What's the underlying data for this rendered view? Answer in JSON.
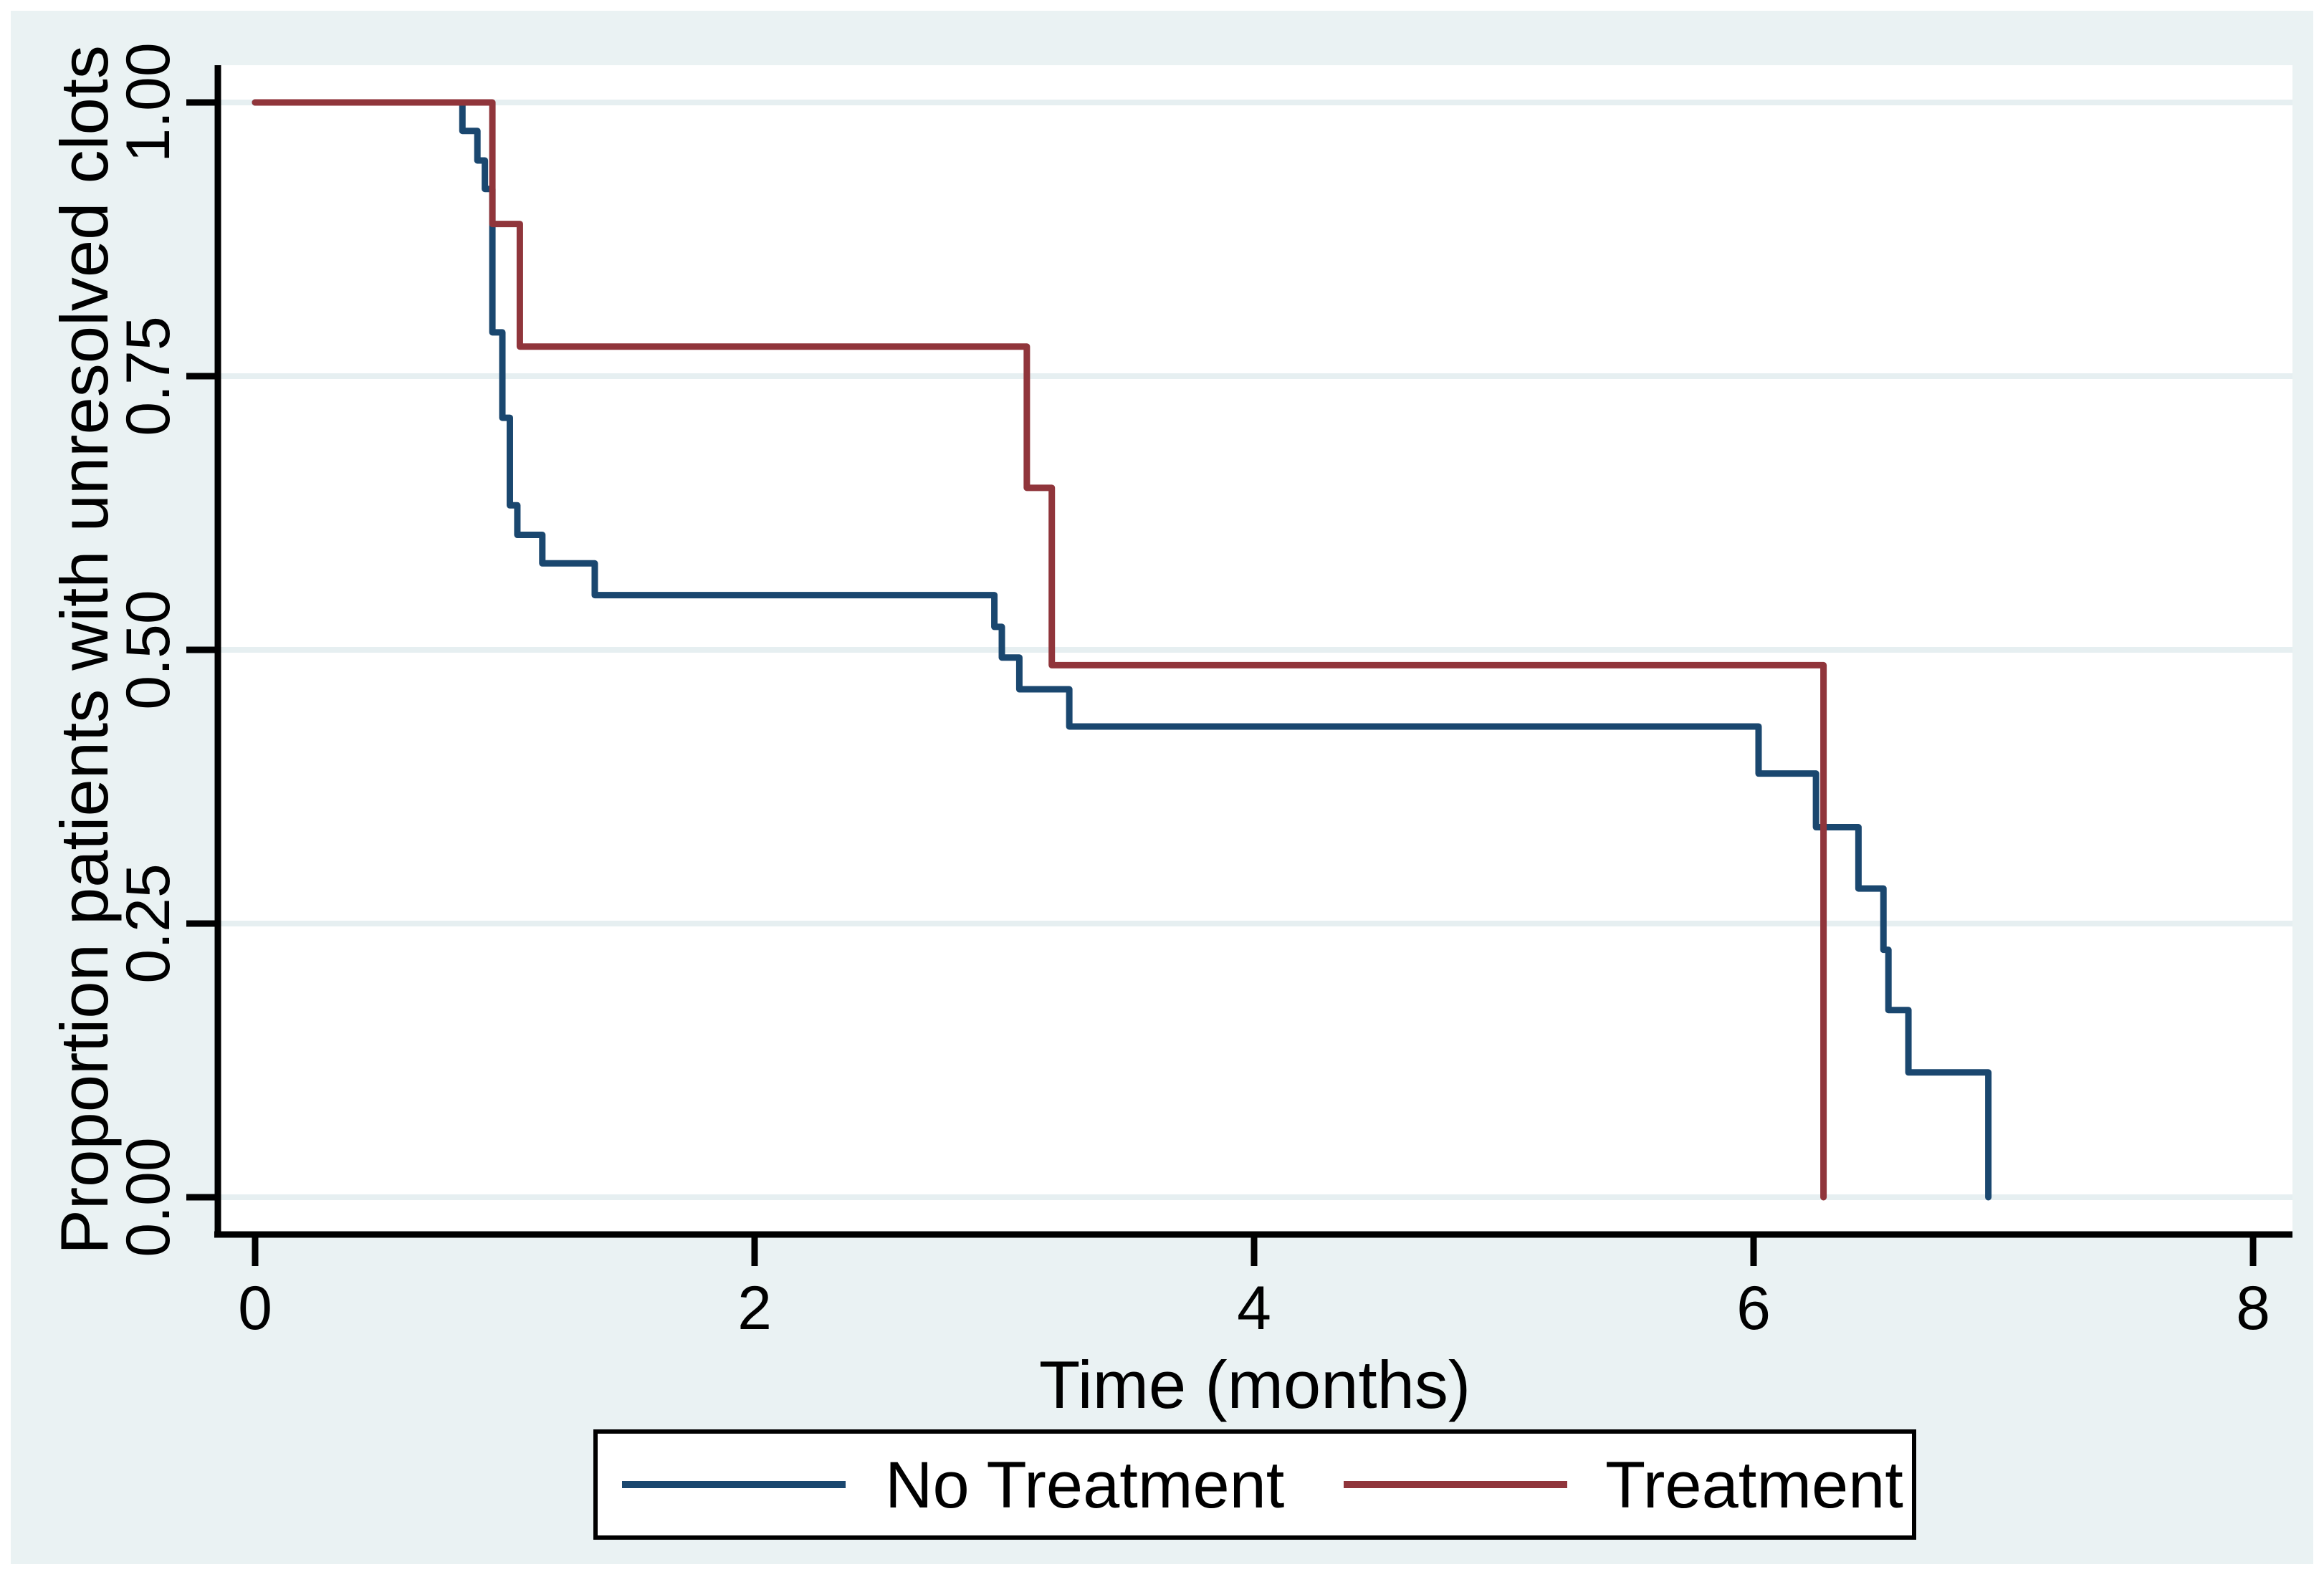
{
  "chart_data": {
    "type": "line",
    "subtype": "kaplan-meier-step",
    "title": "",
    "xlabel": "Time (months)",
    "ylabel": "Proportion patients with unresolved clots",
    "xlim": [
      0,
      8
    ],
    "ylim": [
      0,
      1
    ],
    "grid": true,
    "legend_position": "bottom-center-boxed",
    "x_ticks": [
      {
        "value": 0,
        "label": "0"
      },
      {
        "value": 2,
        "label": "2"
      },
      {
        "value": 4,
        "label": "4"
      },
      {
        "value": 6,
        "label": "6"
      },
      {
        "value": 8,
        "label": "8"
      }
    ],
    "y_ticks": [
      {
        "value": 0.0,
        "label": "0.00"
      },
      {
        "value": 0.25,
        "label": "0.25"
      },
      {
        "value": 0.5,
        "label": "0.50"
      },
      {
        "value": 0.75,
        "label": "0.75"
      },
      {
        "value": 1.0,
        "label": "1.00"
      }
    ],
    "series": [
      {
        "name": "No Treatment",
        "color": "#1a476f",
        "points": [
          [
            0.0,
            1.0
          ],
          [
            0.83,
            0.974
          ],
          [
            0.89,
            0.947
          ],
          [
            0.92,
            0.921
          ],
          [
            0.95,
            0.79
          ],
          [
            0.99,
            0.712
          ],
          [
            1.02,
            0.632
          ],
          [
            1.05,
            0.605
          ],
          [
            1.15,
            0.579
          ],
          [
            1.36,
            0.55
          ],
          [
            2.96,
            0.521
          ],
          [
            2.99,
            0.493
          ],
          [
            3.06,
            0.464
          ],
          [
            3.26,
            0.43
          ],
          [
            6.02,
            0.387
          ],
          [
            6.25,
            0.338
          ],
          [
            6.42,
            0.282
          ],
          [
            6.52,
            0.226
          ],
          [
            6.54,
            0.171
          ],
          [
            6.62,
            0.114
          ],
          [
            6.94,
            0.0
          ]
        ]
      },
      {
        "name": "Treatment",
        "color": "#90353b",
        "points": [
          [
            0.0,
            1.0
          ],
          [
            0.95,
            0.889
          ],
          [
            1.06,
            0.777
          ],
          [
            3.09,
            0.648
          ],
          [
            3.19,
            0.486
          ],
          [
            6.28,
            0.0
          ]
        ]
      }
    ],
    "colors": {
      "figure_background": "#eaf2f3",
      "plot_background": "#ffffff",
      "gridline": "#e6eff1",
      "axis": "#000000",
      "legend_background": "#ffffff",
      "legend_border": "#000000",
      "text": "#000000"
    }
  }
}
